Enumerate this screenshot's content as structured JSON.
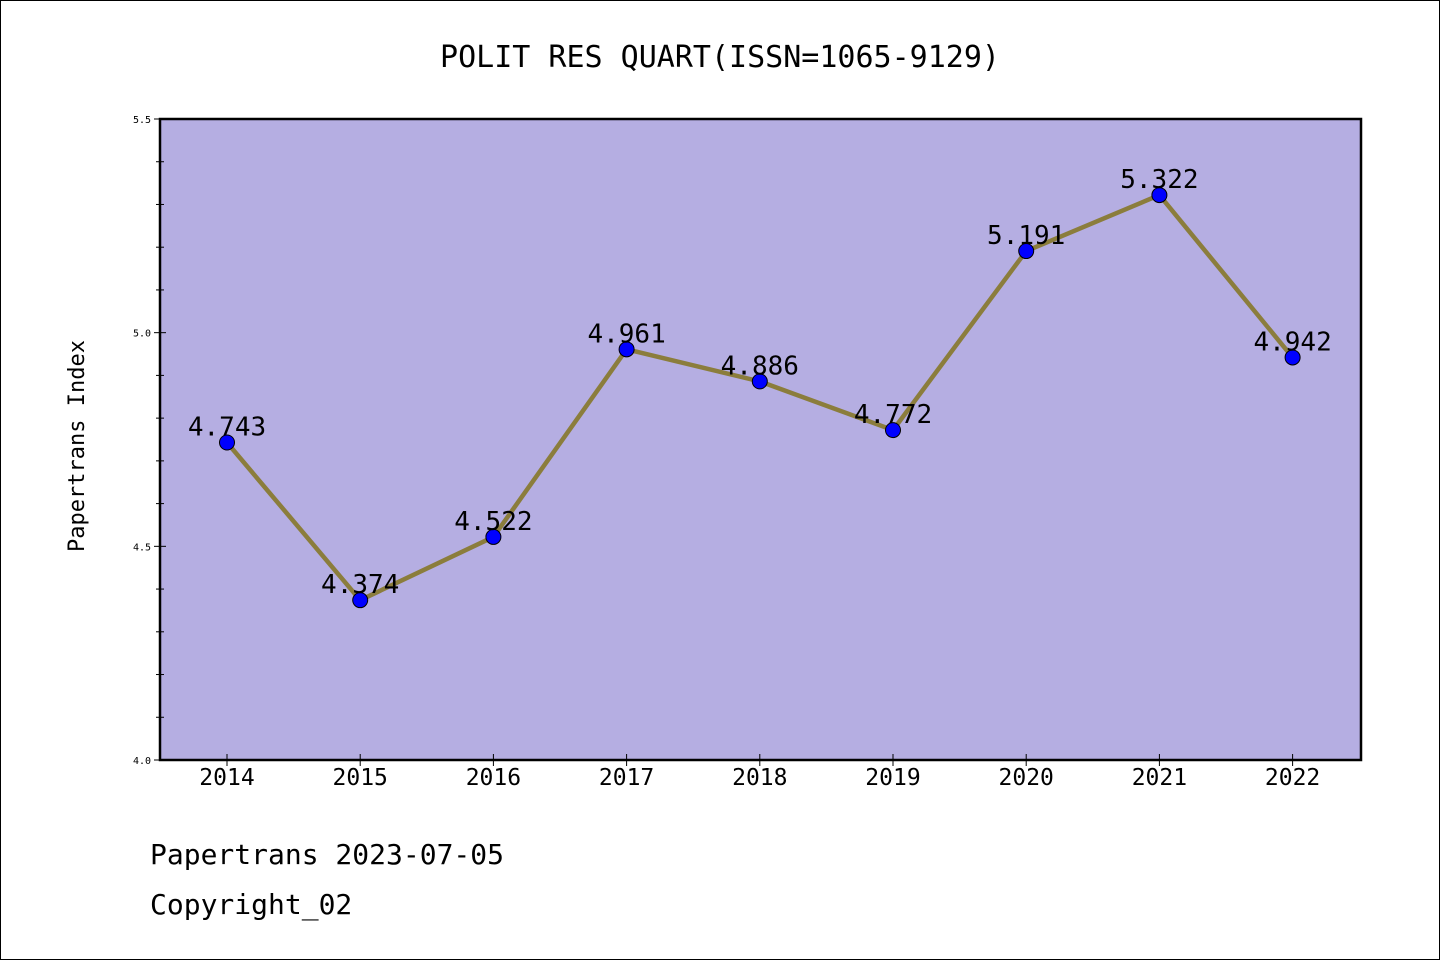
{
  "chart_data": {
    "type": "line",
    "title": "POLIT RES QUART(ISSN=1065-9129)",
    "xlabel": "",
    "ylabel": "Papertrans Index",
    "categories": [
      "2014",
      "2015",
      "2016",
      "2017",
      "2018",
      "2019",
      "2020",
      "2021",
      "2022"
    ],
    "values": [
      4.743,
      4.374,
      4.522,
      4.961,
      4.886,
      4.772,
      5.191,
      5.322,
      4.942
    ],
    "data_labels": [
      "4.743",
      "4.374",
      "4.522",
      "4.961",
      "4.886",
      "4.772",
      "5.191",
      "5.322",
      "4.942"
    ],
    "ylim": [
      4.0,
      5.5
    ],
    "yticks": [
      "4.0",
      "4.5",
      "5.0",
      "5.5"
    ],
    "grid": false,
    "colors": {
      "plot_background": "#b5aee2",
      "line": "#8b7d3c",
      "marker": "#0000ff"
    }
  },
  "footer": {
    "source": "Papertrans 2023-07-05",
    "copyright": "Copyright_02"
  }
}
